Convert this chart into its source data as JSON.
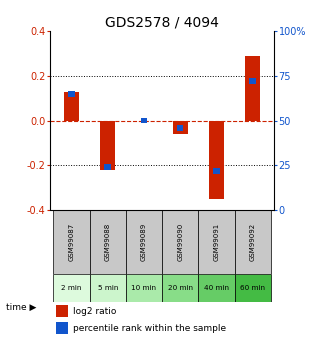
{
  "title": "GDS2578 / 4094",
  "samples": [
    "GSM99087",
    "GSM99088",
    "GSM99089",
    "GSM99090",
    "GSM99091",
    "GSM99092"
  ],
  "time_labels": [
    "2 min",
    "5 min",
    "10 min",
    "20 min",
    "40 min",
    "60 min"
  ],
  "log2_ratio": [
    0.13,
    -0.22,
    0.0,
    -0.06,
    -0.35,
    0.29
  ],
  "percentile_rank": [
    65,
    24,
    50,
    46,
    22,
    72
  ],
  "ylim_left": [
    -0.4,
    0.4
  ],
  "ylim_right": [
    0,
    100
  ],
  "yticks_left": [
    -0.4,
    -0.2,
    0.0,
    0.2,
    0.4
  ],
  "yticks_right": [
    0,
    25,
    50,
    75,
    100
  ],
  "bar_color_red": "#cc2200",
  "bar_color_blue": "#1155cc",
  "bg_color_plot": "#ffffff",
  "bg_color_gsm": "#c8c8c8",
  "time_colors": [
    "#ddfadd",
    "#ccf5cc",
    "#aaeaaa",
    "#88dd88",
    "#66cc66",
    "#44bb44"
  ],
  "grid_color": "#000000",
  "zero_line_color": "#cc2200",
  "title_fontsize": 10,
  "tick_fontsize": 7,
  "label_fontsize": 7
}
